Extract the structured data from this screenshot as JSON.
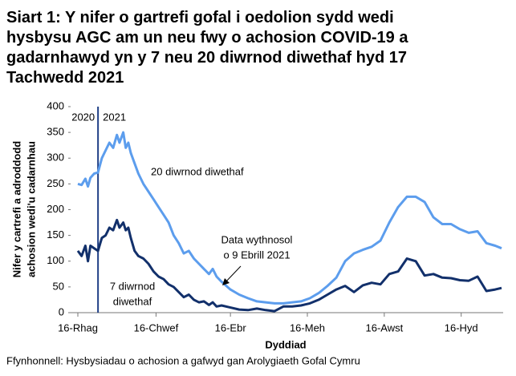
{
  "chart_data": {
    "type": "line",
    "title": [
      "Siart 1: Y nifer o gartrefi gofal i oedolion sydd wedi",
      "hysbysu AGC am un neu fwy o achosion COVID-19 a",
      "gadarnhawyd yn y 7 neu 20 diwrnod diwethaf hyd 17",
      "Tachwedd 2021"
    ],
    "y_label": [
      "Nifer y cartrefi a adroddodd",
      "achosion wedi'u cadarnhau"
    ],
    "x_label": "Dyddiad",
    "source": "Ffynhonnell: Hysbysiadau o achosion a gafwyd gan Arolygiaeth Gofal Cymru",
    "xlim": [
      0,
      336
    ],
    "xticks": [
      {
        "value": 0,
        "label": "16-Rhag"
      },
      {
        "value": 62,
        "label": "16-Chwef"
      },
      {
        "value": 121,
        "label": "16-Ebr"
      },
      {
        "value": 182,
        "label": "16-Meh"
      },
      {
        "value": 243,
        "label": "16-Awst"
      },
      {
        "value": 304,
        "label": "16-Hyd"
      }
    ],
    "ylim": [
      0,
      400
    ],
    "yticks": [
      0,
      50,
      100,
      150,
      200,
      250,
      300,
      350,
      400
    ],
    "year_divider": {
      "value": 16,
      "labels": [
        "2020",
        "2021"
      ],
      "color": "#1f3f86"
    },
    "annotations": [
      {
        "lines": [
          "20 diwrnod diwethaf"
        ]
      },
      {
        "lines": [
          "7 diwrnod",
          "diwethaf"
        ]
      },
      {
        "lines": [
          "Data wythnosol",
          "o 9 Ebrill 2021"
        ]
      }
    ],
    "x": [
      0,
      3,
      6,
      8,
      10,
      13,
      16,
      19,
      22,
      25,
      28,
      31,
      33,
      36,
      38,
      40,
      42,
      45,
      48,
      52,
      56,
      60,
      64,
      68,
      72,
      76,
      80,
      84,
      88,
      92,
      96,
      100,
      104,
      107,
      110,
      114,
      121,
      128,
      135,
      142,
      149,
      156,
      163,
      170,
      177,
      184,
      191,
      198,
      205,
      212,
      219,
      226,
      233,
      240,
      247,
      254,
      261,
      268,
      275,
      282,
      289,
      296,
      303,
      310,
      317,
      324,
      331,
      336
    ],
    "series": [
      {
        "name": "20 diwrnod diwethaf",
        "color": "#5c9ded",
        "values": [
          250,
          248,
          260,
          245,
          262,
          270,
          272,
          300,
          315,
          330,
          320,
          345,
          330,
          350,
          320,
          330,
          310,
          290,
          270,
          250,
          235,
          220,
          205,
          190,
          175,
          150,
          135,
          115,
          120,
          105,
          95,
          85,
          75,
          85,
          70,
          60,
          45,
          35,
          28,
          22,
          20,
          18,
          18,
          20,
          22,
          28,
          38,
          52,
          68,
          100,
          115,
          122,
          128,
          140,
          175,
          205,
          225,
          225,
          215,
          185,
          172,
          172,
          162,
          155,
          158,
          135,
          130,
          125
        ]
      },
      {
        "name": "7 diwrnod diwethaf",
        "color": "#12306b",
        "values": [
          120,
          110,
          130,
          100,
          130,
          125,
          120,
          145,
          150,
          165,
          160,
          180,
          165,
          175,
          160,
          165,
          145,
          120,
          110,
          105,
          95,
          80,
          70,
          65,
          55,
          50,
          40,
          30,
          35,
          25,
          20,
          22,
          15,
          20,
          12,
          14,
          10,
          6,
          5,
          8,
          5,
          3,
          12,
          12,
          14,
          18,
          25,
          35,
          45,
          52,
          40,
          53,
          58,
          55,
          75,
          80,
          105,
          100,
          72,
          75,
          68,
          67,
          63,
          62,
          70,
          42,
          45,
          48
        ]
      }
    ]
  }
}
